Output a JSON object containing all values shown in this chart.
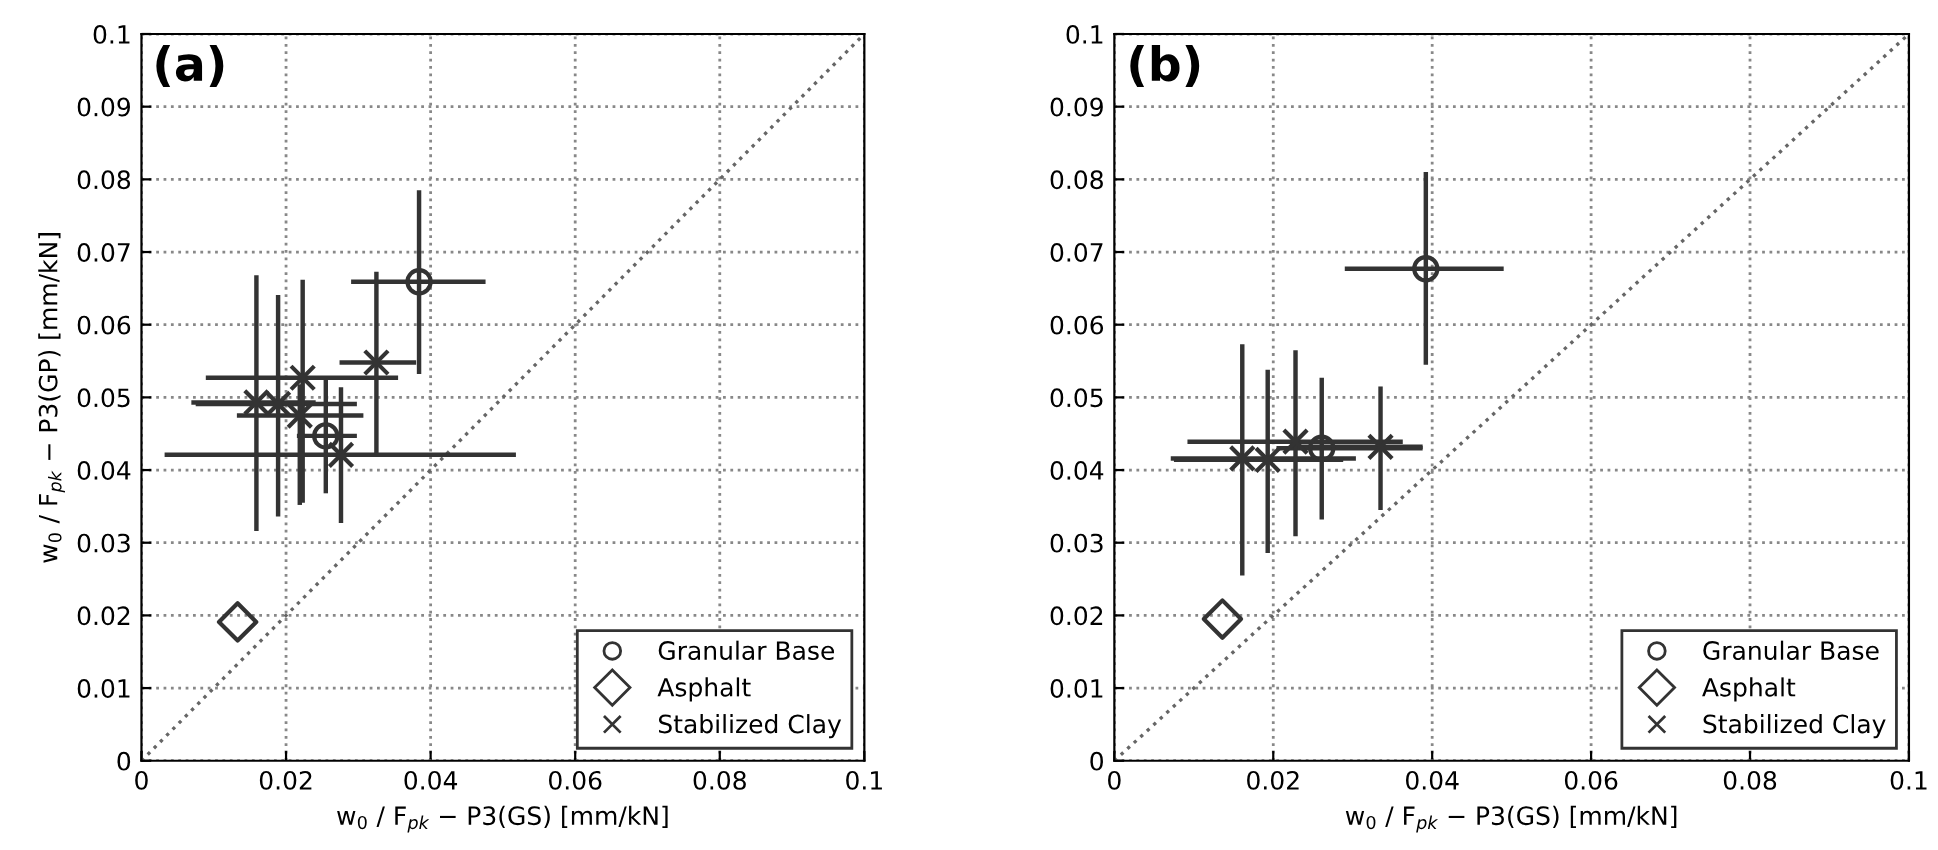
{
  "chart_data": [
    {
      "type": "scatter",
      "annotations": [
        "(a)"
      ],
      "xlabel": "w$_{0}$ / F$_{pk}$ − P3(GS) [mm/kN]",
      "ylabel": "w$_{0}$ / F$_{pk}$ − P3(GP) [mm/kN]",
      "xlim": [
        0,
        0.1
      ],
      "ylim": [
        0,
        0.1
      ],
      "xticks": [
        0,
        0.02,
        0.04,
        0.06,
        0.08,
        0.1
      ],
      "yticks": [
        0,
        0.01,
        0.02,
        0.03,
        0.04,
        0.05,
        0.06,
        0.07,
        0.08,
        0.09,
        0.1
      ],
      "grid": true,
      "legend": "bottom right",
      "series": [
        {
          "name": "Granular Base",
          "color": "#333333",
          "marker": "circle",
          "x": [
            0.0384,
            0.0255
          ],
          "values": [
            0.0659,
            0.0447
          ],
          "xerrors": [
            [
              0.029,
              0.0476
            ],
            [
              0.0215,
              0.0298
            ]
          ],
          "errors": [
            [
              0.0532,
              0.0785
            ],
            [
              0.0368,
              0.0525
            ]
          ]
        },
        {
          "name": "Asphalt",
          "color": "#333333",
          "marker": "diamond",
          "x": [
            0.0133
          ],
          "values": [
            0.0191
          ]
        },
        {
          "name": "Stabilized Clay",
          "color": "#333333",
          "marker": "cross",
          "x": [
            0.0325,
            0.0223,
            0.0159,
            0.0189,
            0.0219,
            0.0276
          ],
          "values": [
            0.0548,
            0.0527,
            0.0493,
            0.0491,
            0.0475,
            0.0421
          ],
          "xerrors": [
            [
              0.0274,
              0.038
            ],
            [
              0.0089,
              0.0355
            ],
            [
              0.0069,
              0.0241
            ],
            [
              0.0075,
              0.0298
            ],
            [
              0.0132,
              0.0307
            ],
            [
              0.0032,
              0.0518
            ]
          ],
          "errors": [
            [
              0.0421,
              0.0673
            ],
            [
              0.0355,
              0.0662
            ],
            [
              0.0316,
              0.0668
            ],
            [
              0.0336,
              0.0641
            ],
            [
              0.0352,
              0.0518
            ],
            [
              0.0327,
              0.0514
            ]
          ]
        },
        {
          "type": "line",
          "color": "#666666",
          "line_style": "dotted",
          "marker": "none",
          "x": [
            0,
            0.1
          ],
          "values": [
            0,
            0.1
          ]
        }
      ]
    },
    {
      "type": "scatter",
      "annotations": [
        "(b)"
      ],
      "xlabel": "w$_{0}$ / F$_{pk}$ − P3(GS) [mm/kN]",
      "xlim": [
        0,
        0.1
      ],
      "ylim": [
        0,
        0.1
      ],
      "xticks": [
        0,
        0.02,
        0.04,
        0.06,
        0.08,
        0.1
      ],
      "yticks": [
        0,
        0.01,
        0.02,
        0.03,
        0.04,
        0.05,
        0.06,
        0.07,
        0.08,
        0.09,
        0.1
      ],
      "grid": true,
      "legend": "bottom right",
      "series": [
        {
          "name": "Granular Base",
          "color": "#333333",
          "marker": "circle",
          "x": [
            0.0392,
            0.0261
          ],
          "values": [
            0.0677,
            0.043
          ],
          "xerrors": [
            [
              0.029,
              0.049
            ],
            [
              0.0204,
              0.0388
            ]
          ],
          "errors": [
            [
              0.0545,
              0.081
            ],
            [
              0.0332,
              0.0527
            ]
          ]
        },
        {
          "name": "Asphalt",
          "color": "#333333",
          "marker": "diamond",
          "x": [
            0.0136
          ],
          "values": [
            0.0195
          ]
        },
        {
          "name": "Stabilized Clay",
          "color": "#333333",
          "marker": "cross",
          "x": [
            0.0335,
            0.0228,
            0.0161,
            0.0193
          ],
          "values": [
            0.0432,
            0.0439,
            0.0416,
            0.0414
          ],
          "xerrors": [
            [
              0.023,
              0.0388
            ],
            [
              0.0092,
              0.0363
            ],
            [
              0.0071,
              0.0304
            ],
            [
              0.0075,
              0.0288
            ]
          ],
          "errors": [
            [
              0.0345,
              0.0515
            ],
            [
              0.0309,
              0.0565
            ],
            [
              0.0255,
              0.0573
            ],
            [
              0.0286,
              0.0538
            ]
          ]
        },
        {
          "type": "line",
          "color": "#666666",
          "line_style": "dotted",
          "marker": "none",
          "x": [
            0,
            0.1
          ],
          "values": [
            0,
            0.1
          ]
        }
      ]
    }
  ]
}
